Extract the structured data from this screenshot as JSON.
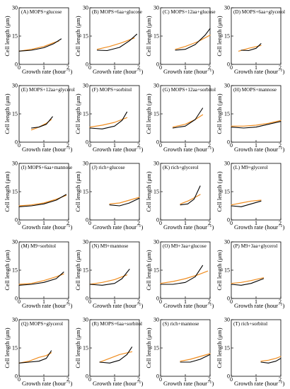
{
  "figure": {
    "line_colors": {
      "black_curve": "#000000",
      "orange_curve": "#f08c1e"
    },
    "y_axis_ticks": [
      "0",
      "15",
      "30"
    ],
    "x_axis_ticks": [
      "0",
      "1",
      "2"
    ],
    "y_axis_label": "Cell length (μm)",
    "x_axis_label": "Growth rate (hour",
    "x_axis_label_exponent": "−1",
    "x_axis_label_suffix": ")"
  },
  "chart_data": [
    {
      "title": "(A) MOPS+glucose",
      "type": "line",
      "xlim": [
        0,
        2
      ],
      "ylim": [
        0,
        30
      ],
      "series": [
        {
          "color": "#000000",
          "x": [
            0,
            0.5,
            1.0,
            1.4,
            1.7
          ],
          "y": [
            7,
            7.5,
            8.8,
            11.0,
            13.5
          ]
        },
        {
          "color": "#f08c1e",
          "x": [
            0,
            0.5,
            1.0,
            1.4,
            1.6
          ],
          "y": [
            7,
            8.0,
            9.5,
            11.5,
            12.3
          ]
        }
      ]
    },
    {
      "title": "(B) MOPS+6aa+glucose",
      "type": "line",
      "xlim": [
        0,
        2
      ],
      "ylim": [
        0,
        30
      ],
      "series": [
        {
          "color": "#000000",
          "x": [
            0.3,
            0.7,
            1.2,
            1.6,
            1.9
          ],
          "y": [
            7.5,
            7.3,
            9.0,
            12.5,
            16.0
          ]
        },
        {
          "color": "#f08c1e",
          "x": [
            0.3,
            0.8,
            1.3,
            1.8
          ],
          "y": [
            8.0,
            9.5,
            11.5,
            14.0
          ]
        }
      ]
    },
    {
      "title": "(C) MOPS+12aa+glucose",
      "type": "line",
      "xlim": [
        0,
        2
      ],
      "ylim": [
        0,
        30
      ],
      "series": [
        {
          "color": "#000000",
          "x": [
            0.6,
            1.0,
            1.4,
            1.8,
            2.0
          ],
          "y": [
            7.5,
            8.0,
            10.5,
            15.5,
            19.0
          ]
        },
        {
          "color": "#f08c1e",
          "x": [
            0.6,
            1.0,
            1.5,
            2.0
          ],
          "y": [
            8.0,
            9.5,
            12.0,
            15.5
          ]
        }
      ]
    },
    {
      "title": "(D) MOPS+6aa+glycerol",
      "type": "line",
      "xlim": [
        0,
        2
      ],
      "ylim": [
        0,
        30
      ],
      "series": [
        {
          "color": "#000000",
          "x": [
            0.4,
            0.7,
            1.0,
            1.2
          ],
          "y": [
            7.5,
            7.3,
            8.5,
            11.0
          ]
        },
        {
          "color": "#f08c1e",
          "x": [
            0.3,
            0.7,
            1.2
          ],
          "y": [
            7.0,
            8.5,
            10.0
          ]
        }
      ]
    },
    {
      "title": "(E) MOPS+12aa+glycerol",
      "type": "line",
      "xlim": [
        0,
        2
      ],
      "ylim": [
        0,
        30
      ],
      "series": [
        {
          "color": "#000000",
          "x": [
            0.5,
            0.8,
            1.1,
            1.35
          ],
          "y": [
            7.5,
            8.0,
            9.5,
            13.5
          ]
        },
        {
          "color": "#f08c1e",
          "x": [
            0.5,
            0.8,
            1.1,
            1.3
          ],
          "y": [
            6.5,
            8.0,
            10.0,
            12.0
          ]
        }
      ]
    },
    {
      "title": "(F) MOPS+sorbitol",
      "type": "line",
      "xlim": [
        0,
        2
      ],
      "ylim": [
        0,
        30
      ],
      "series": [
        {
          "color": "#000000",
          "x": [
            0,
            0.5,
            1.0,
            1.3,
            1.5
          ],
          "y": [
            7.5,
            7.0,
            8.5,
            11.5,
            16.0
          ]
        },
        {
          "color": "#f08c1e",
          "x": [
            0,
            0.5,
            1.0,
            1.5
          ],
          "y": [
            8.0,
            9.0,
            10.5,
            13.0
          ]
        }
      ]
    },
    {
      "title": "(G) MOPS+12aa+sorbitol",
      "type": "line",
      "xlim": [
        0,
        2
      ],
      "ylim": [
        0,
        30
      ],
      "series": [
        {
          "color": "#000000",
          "x": [
            0.5,
            1.0,
            1.4,
            1.7
          ],
          "y": [
            7.5,
            8.5,
            12.0,
            18.0
          ]
        },
        {
          "color": "#f08c1e",
          "x": [
            0.5,
            1.0,
            1.4,
            1.7
          ],
          "y": [
            8.0,
            9.5,
            12.0,
            14.5
          ]
        }
      ]
    },
    {
      "title": "(H) MOPS+mannose",
      "type": "line",
      "xlim": [
        0,
        2
      ],
      "ylim": [
        0,
        30
      ],
      "series": [
        {
          "color": "#000000",
          "x": [
            0,
            0.5,
            1.0,
            1.5,
            2.0
          ],
          "y": [
            8.0,
            7.5,
            8.0,
            9.5,
            11.0
          ]
        },
        {
          "color": "#f08c1e",
          "x": [
            0,
            0.5,
            1.0,
            1.5,
            2.0
          ],
          "y": [
            8.5,
            8.5,
            9.0,
            10.0,
            11.5
          ]
        }
      ]
    },
    {
      "title": "(I) MOPS+6aa+mannose",
      "type": "line",
      "xlim": [
        0,
        2
      ],
      "ylim": [
        0,
        30
      ],
      "series": [
        {
          "color": "#000000",
          "x": [
            0,
            0.5,
            1.0,
            1.5,
            1.9
          ],
          "y": [
            7.0,
            7.5,
            8.5,
            10.5,
            13.5
          ]
        },
        {
          "color": "#f08c1e",
          "x": [
            0,
            0.5,
            1.0,
            1.5,
            1.9
          ],
          "y": [
            7.5,
            8.0,
            9.0,
            11.0,
            13.0
          ]
        }
      ]
    },
    {
      "title": "(J) rich+glucose",
      "type": "line",
      "xlim": [
        0,
        2
      ],
      "ylim": [
        0,
        30
      ],
      "series": [
        {
          "color": "#000000",
          "x": [
            0.8,
            1.2,
            1.6,
            2.0
          ],
          "y": [
            8.0,
            7.5,
            9.0,
            11.5
          ]
        },
        {
          "color": "#f08c1e",
          "x": [
            0.8,
            1.2,
            1.6,
            2.0
          ],
          "y": [
            8.5,
            9.0,
            10.5,
            12.0
          ]
        }
      ]
    },
    {
      "title": "(K) rich+glycerol",
      "type": "line",
      "xlim": [
        0,
        2
      ],
      "ylim": [
        0,
        30
      ],
      "series": [
        {
          "color": "#000000",
          "x": [
            0.8,
            1.1,
            1.35,
            1.6
          ],
          "y": [
            8.0,
            8.5,
            11.0,
            18.0
          ]
        },
        {
          "color": "#f08c1e",
          "x": [
            0.8,
            1.1,
            1.4,
            1.6
          ],
          "y": [
            8.5,
            10.0,
            12.0,
            13.5
          ]
        }
      ]
    },
    {
      "title": "(L) M9+glycerol",
      "type": "line",
      "xlim": [
        0,
        2
      ],
      "ylim": [
        0,
        30
      ],
      "series": [
        {
          "color": "#000000",
          "x": [
            0,
            0.4,
            0.8,
            1.2
          ],
          "y": [
            7.5,
            7.0,
            8.5,
            10.0
          ]
        },
        {
          "color": "#f08c1e",
          "x": [
            0,
            0.4,
            0.8,
            1.2
          ],
          "y": [
            8.0,
            9.0,
            10.0,
            10.5
          ]
        }
      ]
    },
    {
      "title": "(M) M9+sorbitol",
      "type": "line",
      "xlim": [
        0,
        2
      ],
      "ylim": [
        0,
        30
      ],
      "series": [
        {
          "color": "#000000",
          "x": [
            0,
            0.5,
            1.0,
            1.5,
            1.8
          ],
          "y": [
            7.0,
            7.5,
            8.5,
            10.5,
            14.0
          ]
        },
        {
          "color": "#f08c1e",
          "x": [
            0,
            0.5,
            1.0,
            1.5,
            1.8
          ],
          "y": [
            7.5,
            8.0,
            9.5,
            11.5,
            13.0
          ]
        }
      ]
    },
    {
      "title": "(N) M9+mannose",
      "type": "line",
      "xlim": [
        0,
        2
      ],
      "ylim": [
        0,
        30
      ],
      "series": [
        {
          "color": "#000000",
          "x": [
            0,
            0.5,
            1.0,
            1.3,
            1.6
          ],
          "y": [
            7.5,
            7.0,
            8.0,
            10.5,
            15.5
          ]
        },
        {
          "color": "#f08c1e",
          "x": [
            0,
            0.5,
            1.0,
            1.5
          ],
          "y": [
            7.5,
            8.5,
            10.0,
            12.5
          ]
        }
      ]
    },
    {
      "title": "(O) M9+3aa+glucose",
      "type": "line",
      "xlim": [
        0,
        2
      ],
      "ylim": [
        0,
        30
      ],
      "series": [
        {
          "color": "#000000",
          "x": [
            0,
            0.5,
            1.0,
            1.4,
            1.7
          ],
          "y": [
            7.5,
            7.5,
            8.5,
            11.5,
            17.5
          ]
        },
        {
          "color": "#f08c1e",
          "x": [
            0,
            0.5,
            1.0,
            1.5,
            1.9
          ],
          "y": [
            8.0,
            9.0,
            10.5,
            12.5,
            14.5
          ]
        }
      ]
    },
    {
      "title": "(P) M9+3aa+glycerol",
      "type": "line",
      "xlim": [
        0,
        2
      ],
      "ylim": [
        0,
        30
      ],
      "series": [
        {
          "color": "#000000",
          "x": [
            0,
            0.4,
            0.8,
            1.3
          ],
          "y": [
            7.5,
            7.0,
            8.0,
            10.5
          ]
        },
        {
          "color": "#f08c1e",
          "x": [
            0,
            0.4,
            0.8,
            1.3
          ],
          "y": [
            8.0,
            8.5,
            9.5,
            11.0
          ]
        }
      ]
    },
    {
      "title": "(Q) MOPS+glycerol",
      "type": "line",
      "xlim": [
        0,
        2
      ],
      "ylim": [
        0,
        30
      ],
      "series": [
        {
          "color": "#000000",
          "x": [
            0,
            0.4,
            0.8,
            1.1,
            1.3
          ],
          "y": [
            7.0,
            7.5,
            8.0,
            9.5,
            13.5
          ]
        },
        {
          "color": "#f08c1e",
          "x": [
            0,
            0.4,
            0.8,
            1.1,
            1.3
          ],
          "y": [
            7.0,
            8.0,
            10.0,
            11.0,
            12.5
          ]
        }
      ]
    },
    {
      "title": "(R) MOPS+6aa+sorbitol",
      "type": "line",
      "xlim": [
        0,
        2
      ],
      "ylim": [
        0,
        30
      ],
      "series": [
        {
          "color": "#000000",
          "x": [
            0.4,
            0.8,
            1.2,
            1.5,
            1.7
          ],
          "y": [
            7.5,
            7.0,
            8.5,
            11.5,
            15.5
          ]
        },
        {
          "color": "#f08c1e",
          "x": [
            0.4,
            0.8,
            1.2,
            1.7
          ],
          "y": [
            7.5,
            9.5,
            11.5,
            13.0
          ]
        }
      ]
    },
    {
      "title": "(S) rich+mannose",
      "type": "line",
      "xlim": [
        0,
        2
      ],
      "ylim": [
        0,
        30
      ],
      "series": [
        {
          "color": "#000000",
          "x": [
            0.8,
            1.2,
            1.6,
            2.0
          ],
          "y": [
            7.5,
            7.5,
            9.0,
            11.5
          ]
        },
        {
          "color": "#f08c1e",
          "x": [
            0.8,
            1.2,
            1.6,
            2.0
          ],
          "y": [
            8.0,
            9.0,
            10.5,
            12.0
          ]
        }
      ]
    },
    {
      "title": "(T) rich+sorbitol",
      "type": "line",
      "xlim": [
        0,
        2
      ],
      "ylim": [
        0,
        30
      ],
      "series": [
        {
          "color": "#000000",
          "x": [
            1.2,
            1.5,
            1.8,
            2.0
          ],
          "y": [
            7.5,
            7.0,
            8.0,
            9.5
          ]
        },
        {
          "color": "#f08c1e",
          "x": [
            1.2,
            1.5,
            1.8,
            2.0
          ],
          "y": [
            8.0,
            8.5,
            9.5,
            10.5
          ]
        }
      ]
    }
  ]
}
